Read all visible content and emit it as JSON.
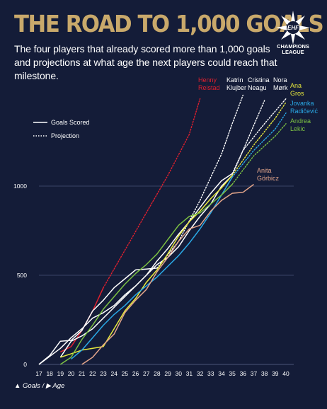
{
  "title": "THE ROAD TO 1,000 GOALS",
  "subtitle": "The four players that already scored more than 1,000 goals and projections at what age the next players could reach that milestone.",
  "logo": {
    "icon": "ehf-champions-league-logo",
    "line1": "EHF",
    "line2": "CHAMPIONS",
    "line3": "LEAGUE"
  },
  "axis_note": "▲ Goals / ▶ Age",
  "chart_data": {
    "type": "line",
    "xlim": [
      17,
      40
    ],
    "ylim": [
      0,
      1000
    ],
    "x_ticks": [
      "17",
      "18",
      "19",
      "20",
      "21",
      "22",
      "23",
      "24",
      "25",
      "26",
      "27",
      "28",
      "29",
      "30",
      "31",
      "32",
      "33",
      "34",
      "35",
      "36",
      "37",
      "38",
      "39",
      "40"
    ],
    "y_ticks": [
      "0",
      "500",
      "1000"
    ],
    "gridlines": [
      0,
      500,
      1000
    ],
    "legend_position": "top-left",
    "legend": [
      {
        "label": "Goals Scored",
        "style": "solid"
      },
      {
        "label": "Projection",
        "style": "dotted"
      }
    ],
    "series": [
      {
        "name": "Henny Reistad",
        "label_lines": [
          "Henny",
          "Reistad"
        ],
        "color": "#e0202e",
        "values": [
          [
            19,
            70
          ],
          [
            20,
            100
          ],
          [
            21,
            190
          ],
          [
            22,
            300
          ],
          [
            23,
            430
          ]
        ],
        "projection": [
          [
            23,
            430
          ],
          [
            25,
            640
          ],
          [
            27,
            850
          ],
          [
            29,
            1060
          ],
          [
            31,
            1290
          ],
          [
            32,
            1490
          ]
        ]
      },
      {
        "name": "Katrin Klujber",
        "label_lines": [
          "Katrin",
          "Klujber"
        ],
        "color": "#ffffff",
        "values": [
          [
            17,
            0
          ],
          [
            18,
            50
          ],
          [
            19,
            130
          ],
          [
            20,
            135
          ],
          [
            21,
            190
          ],
          [
            22,
            300
          ],
          [
            23,
            360
          ],
          [
            24,
            430
          ],
          [
            25,
            480
          ],
          [
            26,
            530
          ],
          [
            27,
            535
          ],
          [
            28,
            540
          ]
        ],
        "projection": [
          [
            28,
            540
          ],
          [
            30,
            690
          ],
          [
            32,
            920
          ],
          [
            34,
            1180
          ],
          [
            35,
            1350
          ],
          [
            36,
            1510
          ]
        ]
      },
      {
        "name": "Cristina Neagu",
        "label_lines": [
          "Cristina",
          "Neagu"
        ],
        "color": "#ffffff",
        "values": [
          [
            17,
            0
          ],
          [
            18,
            45
          ],
          [
            19,
            90
          ],
          [
            20,
            150
          ],
          [
            21,
            200
          ],
          [
            22,
            260
          ],
          [
            23,
            290
          ],
          [
            24,
            330
          ],
          [
            25,
            390
          ],
          [
            26,
            440
          ],
          [
            27,
            500
          ],
          [
            28,
            560
          ],
          [
            29,
            600
          ],
          [
            30,
            660
          ],
          [
            31,
            750
          ],
          [
            32,
            830
          ],
          [
            33,
            900
          ],
          [
            34,
            1000
          ],
          [
            35,
            1060
          ]
        ],
        "projection": [
          [
            35,
            1060
          ],
          [
            36,
            1200
          ],
          [
            37,
            1340
          ],
          [
            38,
            1480
          ]
        ]
      },
      {
        "name": "Nora Mørk",
        "label_lines": [
          "Nora",
          "Mørk"
        ],
        "color": "#ffffff",
        "values": [
          [
            19,
            40
          ],
          [
            20,
            130
          ],
          [
            21,
            160
          ],
          [
            22,
            200
          ],
          [
            23,
            260
          ],
          [
            24,
            320
          ],
          [
            25,
            380
          ],
          [
            26,
            440
          ],
          [
            27,
            500
          ],
          [
            28,
            580
          ],
          [
            29,
            650
          ],
          [
            30,
            730
          ],
          [
            31,
            800
          ],
          [
            32,
            880
          ],
          [
            33,
            960
          ],
          [
            34,
            1030
          ],
          [
            35,
            1070
          ]
        ],
        "projection": [
          [
            35,
            1070
          ],
          [
            36,
            1200
          ],
          [
            38,
            1350
          ],
          [
            40,
            1490
          ]
        ]
      },
      {
        "name": "Ana Gros",
        "label_lines": [
          "Ana",
          "Gros"
        ],
        "color": "#e9ea3c",
        "values": [
          [
            19,
            40
          ],
          [
            20,
            60
          ],
          [
            21,
            80
          ],
          [
            22,
            90
          ],
          [
            23,
            100
          ],
          [
            24,
            200
          ],
          [
            25,
            300
          ],
          [
            26,
            370
          ],
          [
            27,
            460
          ],
          [
            28,
            530
          ],
          [
            29,
            620
          ],
          [
            30,
            720
          ],
          [
            31,
            800
          ],
          [
            32,
            860
          ],
          [
            33,
            930
          ],
          [
            34,
            990
          ],
          [
            35,
            1060
          ]
        ],
        "projection": [
          [
            35,
            1060
          ],
          [
            37,
            1230
          ],
          [
            39,
            1380
          ],
          [
            40,
            1470
          ]
        ]
      },
      {
        "name": "Jovanka Radičević",
        "label_lines": [
          "Jovanka",
          "Radičević"
        ],
        "color": "#2aa9e6",
        "values": [
          [
            20,
            30
          ],
          [
            21,
            80
          ],
          [
            22,
            150
          ],
          [
            23,
            220
          ],
          [
            24,
            280
          ],
          [
            25,
            330
          ],
          [
            26,
            390
          ],
          [
            27,
            440
          ],
          [
            28,
            490
          ],
          [
            29,
            550
          ],
          [
            30,
            610
          ],
          [
            31,
            680
          ],
          [
            32,
            760
          ],
          [
            33,
            850
          ],
          [
            34,
            950
          ],
          [
            35,
            1050
          ]
        ],
        "projection": [
          [
            35,
            1050
          ],
          [
            37,
            1200
          ],
          [
            39,
            1320
          ],
          [
            40,
            1410
          ]
        ]
      },
      {
        "name": "Andrea Lekic",
        "label_lines": [
          "Andrea",
          "Lekic"
        ],
        "color": "#7cc143",
        "values": [
          [
            19,
            0
          ],
          [
            20,
            40
          ],
          [
            21,
            140
          ],
          [
            22,
            220
          ],
          [
            23,
            310
          ],
          [
            24,
            380
          ],
          [
            25,
            450
          ],
          [
            26,
            510
          ],
          [
            27,
            560
          ],
          [
            28,
            620
          ],
          [
            29,
            700
          ],
          [
            30,
            780
          ],
          [
            31,
            830
          ],
          [
            32,
            850
          ],
          [
            33,
            900
          ],
          [
            34,
            950
          ],
          [
            35,
            1010
          ]
        ],
        "projection": [
          [
            35,
            1010
          ],
          [
            37,
            1170
          ],
          [
            39,
            1280
          ],
          [
            40,
            1350
          ]
        ]
      },
      {
        "name": "Anita Görbicz",
        "label_lines": [
          "Anita",
          "Görbicz"
        ],
        "color": "#e3a58a",
        "values": [
          [
            21,
            0
          ],
          [
            22,
            40
          ],
          [
            23,
            110
          ],
          [
            24,
            170
          ],
          [
            25,
            290
          ],
          [
            26,
            360
          ],
          [
            27,
            420
          ],
          [
            28,
            520
          ],
          [
            29,
            600
          ],
          [
            30,
            690
          ],
          [
            31,
            760
          ],
          [
            32,
            780
          ],
          [
            33,
            860
          ],
          [
            34,
            920
          ],
          [
            35,
            960
          ],
          [
            36,
            965
          ],
          [
            37,
            1010
          ]
        ],
        "projection": []
      }
    ]
  }
}
